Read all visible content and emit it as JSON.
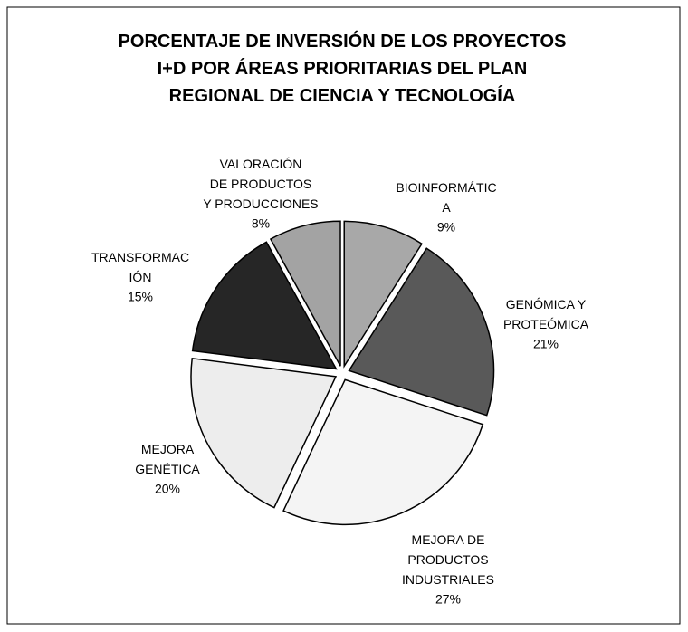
{
  "chart_data": {
    "type": "pie",
    "title": "PORCENTAJE DE INVERSIÓN DE LOS PROYECTOS I+D POR ÁREAS PRIORITARIAS DEL PLAN REGIONAL DE CIENCIA Y TECNOLOGÍA",
    "categories": [
      "BIOINFORMÁTICA",
      "GENÓMICA Y PROTEÓMICA",
      "MEJORA DE PRODUCTOS INDUSTRIALES",
      "MEJORA GENÉTICA",
      "TRANSFORMACIÓN",
      "VALORACIÓN DE PRODUCTOS Y PRODUCCIONES"
    ],
    "values": [
      9,
      21,
      27,
      20,
      15,
      8
    ],
    "value_labels": [
      "9%",
      "21%",
      "27%",
      "20%",
      "15%",
      "8%"
    ],
    "colors": [
      "#a8a8a8",
      "#595959",
      "#f4f4f4",
      "#ededed",
      "#262626",
      "#a3a3a3"
    ]
  }
}
